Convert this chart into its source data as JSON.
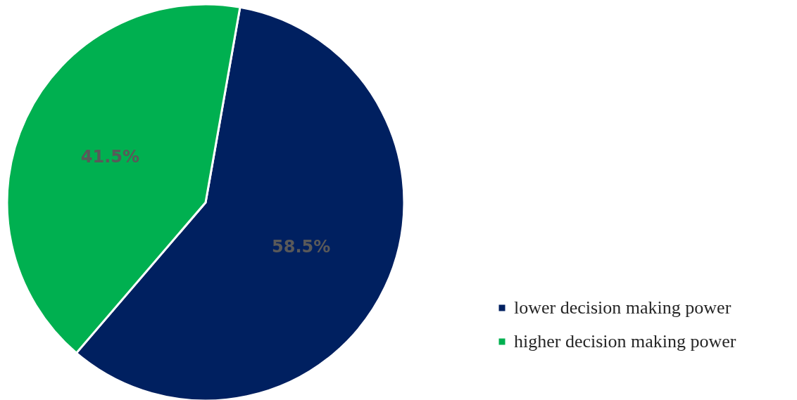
{
  "chart_data": {
    "type": "pie",
    "categories": [
      "lower decision making power",
      "higher decision making power"
    ],
    "values": [
      58.5,
      41.5
    ],
    "colors": [
      "#002060",
      "#00b050"
    ],
    "value_labels": [
      "58.5%",
      "41.5%"
    ],
    "legend": "bottom right"
  }
}
